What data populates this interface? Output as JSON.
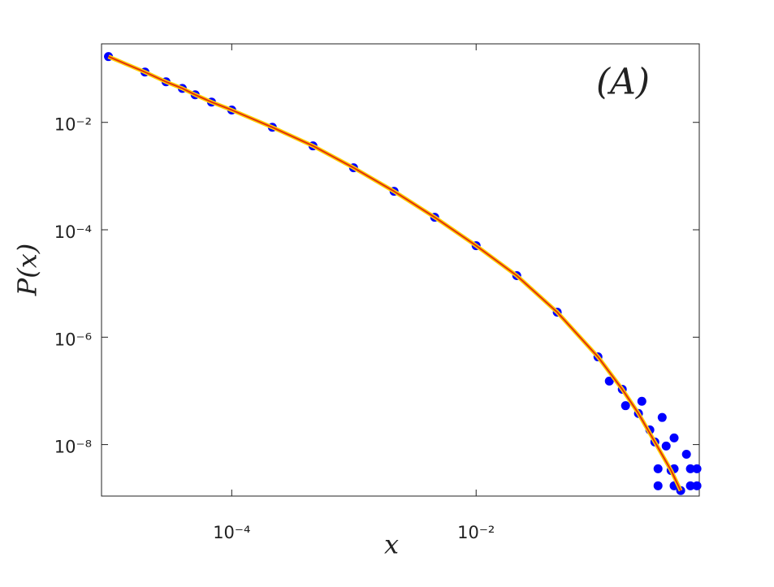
{
  "chart_data": {
    "type": "scatter",
    "xlabel": "x",
    "ylabel": "P(x)",
    "annotation": "(A)",
    "xscale": "log",
    "yscale": "log",
    "xlim": [
      8.6e-06,
      0.67
    ],
    "ylim": [
      1.1e-09,
      0.29
    ],
    "xticks": [
      {
        "value": 0.0001,
        "label": "10⁻⁴"
      },
      {
        "value": 0.01,
        "label": "10⁻²"
      }
    ],
    "yticks": [
      {
        "value": 0.01,
        "label": "10⁻²"
      },
      {
        "value": 0.0001,
        "label": "10⁻⁴"
      },
      {
        "value": 1e-06,
        "label": "10⁻⁶"
      },
      {
        "value": 1e-08,
        "label": "10⁻⁸"
      }
    ],
    "series": [
      {
        "type": "scatter",
        "color": "#0000ff",
        "x": [
          9.8e-06,
          1.95e-05,
          2.9e-05,
          3.94e-05,
          5.02e-05,
          6.83e-05,
          0.0001,
          0.000215,
          0.000462,
          0.000993,
          0.00213,
          0.00458,
          0.01,
          0.0215,
          0.0461,
          0.0993,
          0.157,
          0.213,
          0.29,
          0.394,
          0.472,
          0.123,
          0.167,
          0.227,
          0.264,
          0.333,
          0.359,
          0.417,
          0.526,
          0.308,
          0.417,
          0.567,
          0.641,
          0.308,
          0.417,
          0.567,
          0.641
        ],
        "values": [
          0.168,
          0.0865,
          0.0569,
          0.043,
          0.0327,
          0.0239,
          0.017,
          0.0081,
          0.00365,
          0.00143,
          0.00052,
          0.000171,
          5.06e-05,
          1.4e-05,
          2.92e-06,
          4.3e-07,
          1.07e-07,
          3.8e-08,
          1.12e-08,
          3.3e-09,
          1.39e-09,
          1.52e-07,
          5.3e-08,
          6.4e-08,
          1.88e-08,
          3.2e-08,
          9.4e-09,
          1.33e-08,
          6.6e-09,
          3.55e-09,
          3.55e-09,
          3.55e-09,
          3.55e-09,
          1.71e-09,
          1.71e-09,
          1.71e-09,
          1.71e-09
        ]
      },
      {
        "type": "line",
        "color": "#e03010",
        "edge_color": "#ffd000",
        "x": [
          9.8e-06,
          1.95e-05,
          2.9e-05,
          3.94e-05,
          5.02e-05,
          6.83e-05,
          0.0001,
          0.000215,
          0.000462,
          0.000993,
          0.00213,
          0.00458,
          0.01,
          0.0215,
          0.0461,
          0.0993,
          0.157,
          0.213,
          0.29,
          0.394,
          0.472
        ],
        "values": [
          0.168,
          0.0865,
          0.0569,
          0.043,
          0.0327,
          0.0239,
          0.017,
          0.0081,
          0.00365,
          0.00143,
          0.00052,
          0.000171,
          5.06e-05,
          1.4e-05,
          2.92e-06,
          4.3e-07,
          1.07e-07,
          3.8e-08,
          1.12e-08,
          3.3e-09,
          1.39e-09
        ]
      }
    ]
  }
}
